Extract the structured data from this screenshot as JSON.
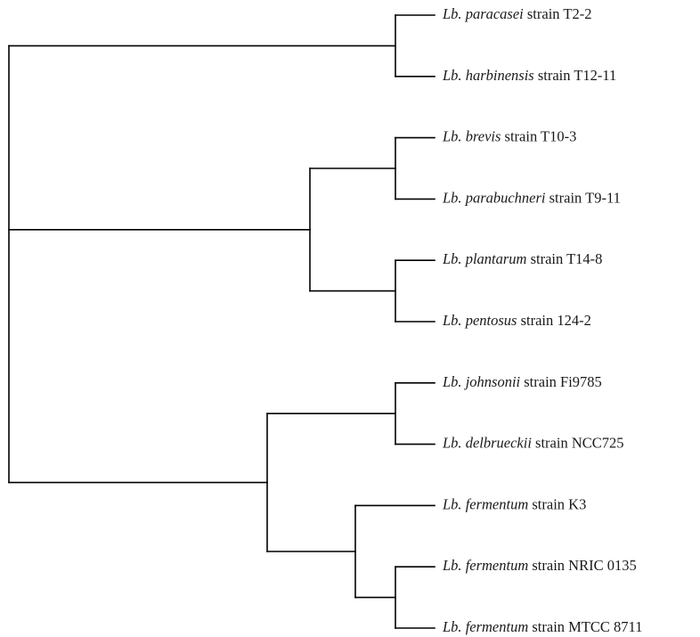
{
  "tree": {
    "leaves": [
      {
        "id": "l1",
        "genus": "Lb.",
        "species": "paracasei",
        "suffix": "strain T2-2"
      },
      {
        "id": "l2",
        "genus": "Lb.",
        "species": "harbinensis",
        "suffix": "strain T12-11"
      },
      {
        "id": "l3",
        "genus": "Lb.",
        "species": "brevis",
        "suffix": "strain T10-3"
      },
      {
        "id": "l4",
        "genus": "Lb.",
        "species": "parabuchneri",
        "suffix": "strain T9-11"
      },
      {
        "id": "l5",
        "genus": "Lb.",
        "species": "plantarum",
        "suffix": "strain T14-8"
      },
      {
        "id": "l6",
        "genus": "Lb.",
        "species": "pentosus",
        "suffix": "strain 124-2"
      },
      {
        "id": "l7",
        "genus": "Lb.",
        "species": "johnsonii",
        "suffix": "strain Fi9785"
      },
      {
        "id": "l8",
        "genus": "Lb.",
        "species": "delbrueckii",
        "suffix": "strain NCC725"
      },
      {
        "id": "l9",
        "genus": "Lb.",
        "species": "fermentum",
        "suffix": "strain K3"
      },
      {
        "id": "l10",
        "genus": "Lb.",
        "species": "fermentum",
        "suffix": "strain NRIC 0135"
      },
      {
        "id": "l11",
        "genus": "Lb.",
        "species": "fermentum",
        "suffix": "strain MTCC 8711"
      }
    ],
    "nodes": [
      {
        "id": "c12",
        "children": [
          "l1",
          "l2"
        ]
      },
      {
        "id": "c34",
        "children": [
          "l3",
          "l4"
        ]
      },
      {
        "id": "c56",
        "children": [
          "l5",
          "l6"
        ]
      },
      {
        "id": "c3456",
        "children": [
          "c34",
          "c56"
        ]
      },
      {
        "id": "c78",
        "children": [
          "l7",
          "l8"
        ]
      },
      {
        "id": "c1011",
        "children": [
          "l10",
          "l11"
        ]
      },
      {
        "id": "c91011",
        "children": [
          "l9",
          "c1011"
        ]
      },
      {
        "id": "c7891011",
        "children": [
          "c78",
          "c91011"
        ]
      },
      {
        "id": "root",
        "children": [
          "c12",
          "c3456",
          "c7891011"
        ]
      }
    ]
  }
}
